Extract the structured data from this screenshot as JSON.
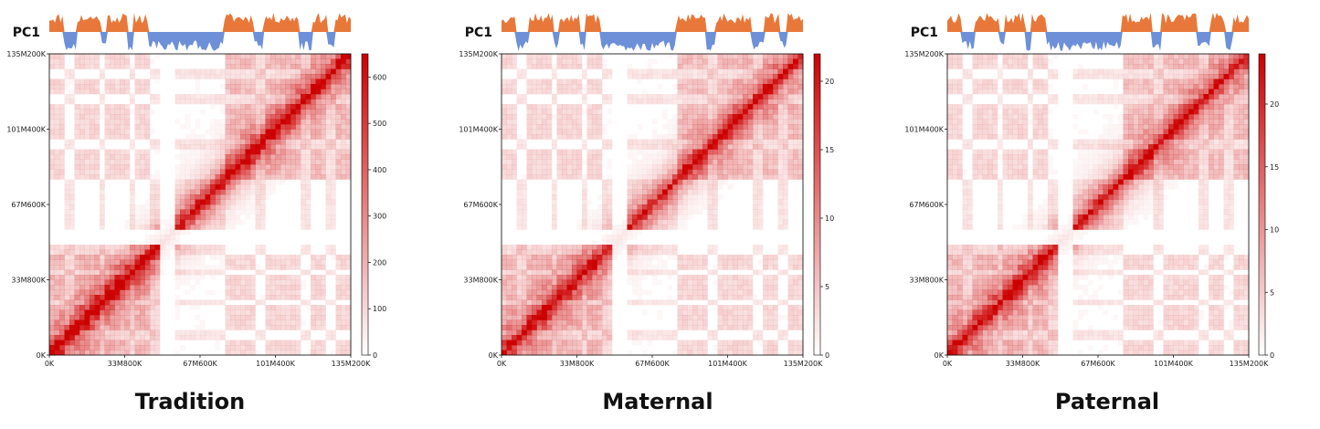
{
  "chart_data": [
    {
      "type": "heatmap",
      "title": "Tradition",
      "track_label": "PC1",
      "x_ticks": [
        "0K",
        "33M800K",
        "67M600K",
        "101M400K",
        "135M200K"
      ],
      "y_ticks": [
        "0K",
        "33M800K",
        "67M600K",
        "101M400K",
        "135M200K"
      ],
      "range": [
        0,
        135200000
      ],
      "colorbar": {
        "min": 0,
        "max": 650,
        "ticks": [
          0,
          100,
          200,
          300,
          400,
          500,
          600
        ]
      },
      "colors": {
        "high": "#cc0000",
        "low": "#ffffff",
        "pc_pos": "#e8783a",
        "pc_neg": "#6e90d8"
      }
    },
    {
      "type": "heatmap",
      "title": "Maternal",
      "track_label": "PC1",
      "x_ticks": [
        "0K",
        "33M800K",
        "67M600K",
        "101M400K",
        "135M200K"
      ],
      "y_ticks": [
        "0K",
        "33M800K",
        "67M600K",
        "101M400K",
        "135M200K"
      ],
      "range": [
        0,
        135200000
      ],
      "colorbar": {
        "min": 0,
        "max": 22,
        "ticks": [
          0,
          5,
          10,
          15,
          20
        ]
      },
      "colors": {
        "high": "#cc0000",
        "low": "#ffffff",
        "pc_pos": "#e8783a",
        "pc_neg": "#6e90d8"
      }
    },
    {
      "type": "heatmap",
      "title": "Paternal",
      "track_label": "PC1",
      "x_ticks": [
        "0K",
        "33M800K",
        "67M600K",
        "101M400K",
        "135M200K"
      ],
      "y_ticks": [
        "0K",
        "33M800K",
        "67M600K",
        "101M400K",
        "135M200K"
      ],
      "range": [
        0,
        135200000
      ],
      "colorbar": {
        "min": 0,
        "max": 24,
        "ticks": [
          0,
          5,
          10,
          15,
          20
        ]
      },
      "colors": {
        "high": "#cc0000",
        "low": "#ffffff",
        "pc_pos": "#e8783a",
        "pc_neg": "#6e90d8"
      }
    }
  ]
}
